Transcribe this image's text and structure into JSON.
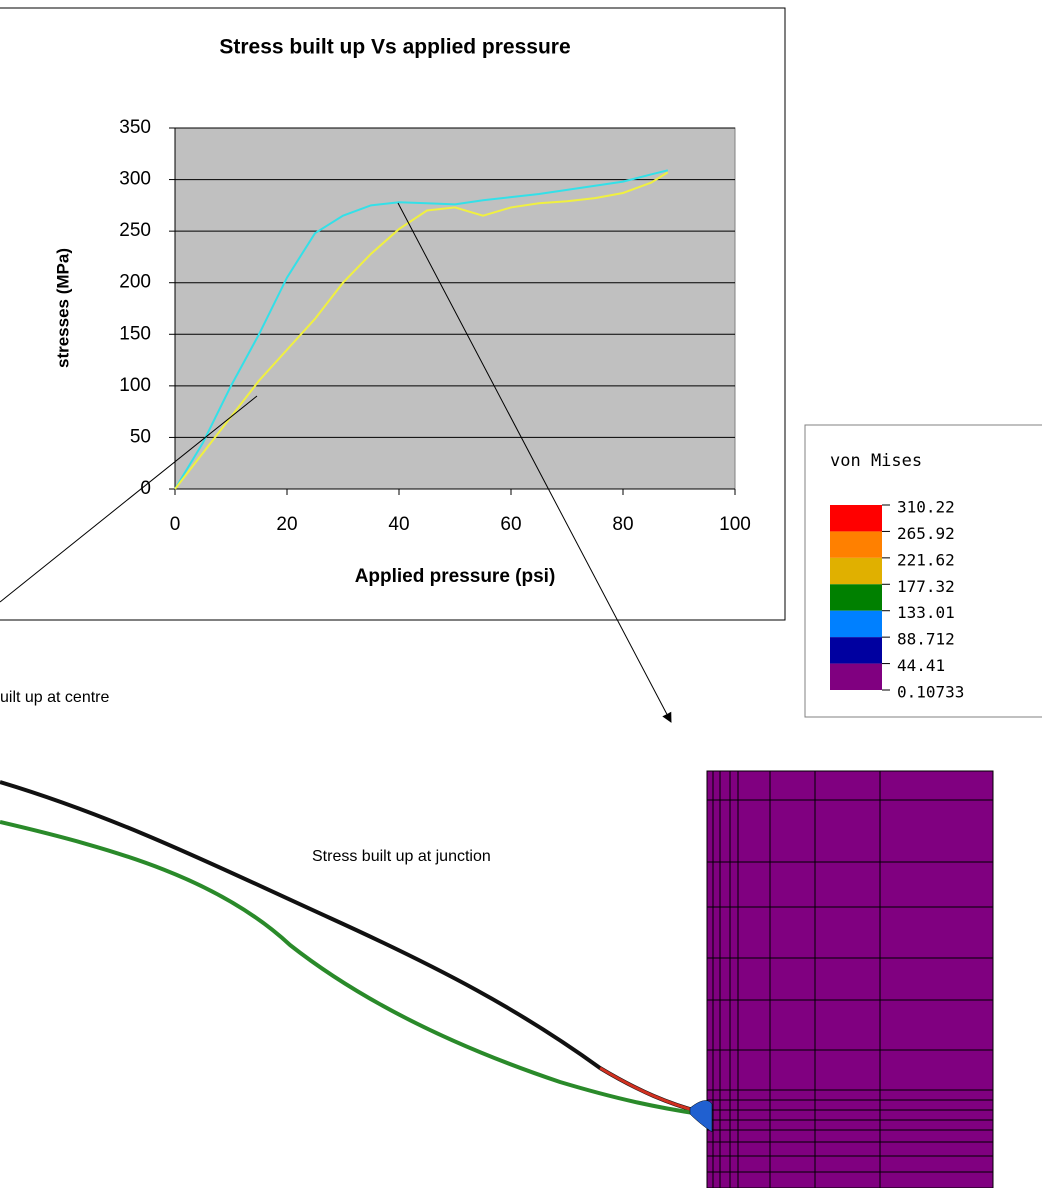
{
  "chart_data": {
    "type": "line",
    "title": "Stress built up Vs applied pressure",
    "x_label": "Applied pressure (psi)",
    "y_label": "stresses (MPa)",
    "xlim": [
      0,
      100
    ],
    "xticks": [
      0,
      20,
      40,
      60,
      80,
      100
    ],
    "ylim": [
      0,
      350
    ],
    "yticks": [
      0,
      50,
      100,
      150,
      200,
      250,
      300,
      350
    ],
    "grid": true,
    "series": [
      {
        "color": "#33e0e8",
        "x": [
          0,
          5,
          10,
          15,
          20,
          25,
          30,
          35,
          40,
          45,
          50,
          55,
          60,
          65,
          70,
          75,
          80,
          85,
          88
        ],
        "values": [
          0,
          45,
          100,
          150,
          205,
          248,
          265,
          275,
          278,
          277,
          276,
          280,
          283,
          286,
          290,
          294,
          298,
          305,
          309
        ]
      },
      {
        "color": "#f0f040",
        "x": [
          0,
          5,
          10,
          15,
          20,
          25,
          30,
          35,
          40,
          45,
          50,
          55,
          60,
          65,
          70,
          75,
          80,
          85,
          88
        ],
        "values": [
          0,
          35,
          70,
          105,
          135,
          165,
          200,
          228,
          252,
          270,
          273,
          265,
          273,
          277,
          279,
          282,
          287,
          297,
          307
        ]
      }
    ]
  },
  "annotations": {
    "centre": "uilt up at centre",
    "junction": "Stress built up at junction"
  },
  "contour_legend": {
    "title": "von Mises",
    "levels": [
      310.22,
      265.92,
      221.62,
      177.32,
      133.01,
      88.712,
      44.41,
      0.10733
    ],
    "colors": [
      "#ff0000",
      "#ff8000",
      "#e0b000",
      "#008000",
      "#0080ff",
      "#0000a0",
      "#800080"
    ]
  }
}
